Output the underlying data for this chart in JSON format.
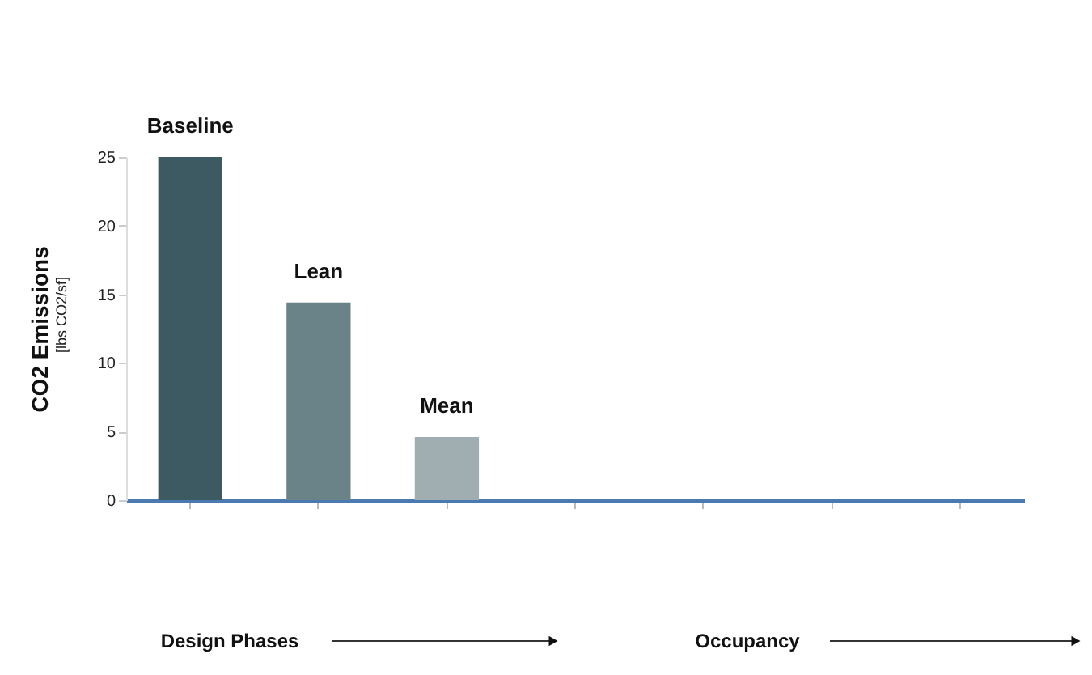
{
  "chart_data": {
    "type": "bar",
    "categories": [
      "Baseline",
      "Lean",
      "Mean",
      null,
      null,
      null,
      null
    ],
    "values": [
      25,
      14.4,
      4.6,
      null,
      null,
      null,
      null
    ],
    "colors": [
      "#3d5a63",
      "#6a8388",
      "#a0adb1",
      "#a0adb1",
      "#a0adb1",
      "#a0adb1",
      "#a0adb1"
    ],
    "ylabel": "CO2 Emissions",
    "annotations": [
      "[lbs CO2/sf]",
      "Design Phases",
      "Occupancy"
    ],
    "ylim": [
      0,
      25
    ],
    "yticks": [
      0,
      5,
      10,
      15,
      20,
      25
    ],
    "grid": false,
    "tick_labels": "y"
  }
}
